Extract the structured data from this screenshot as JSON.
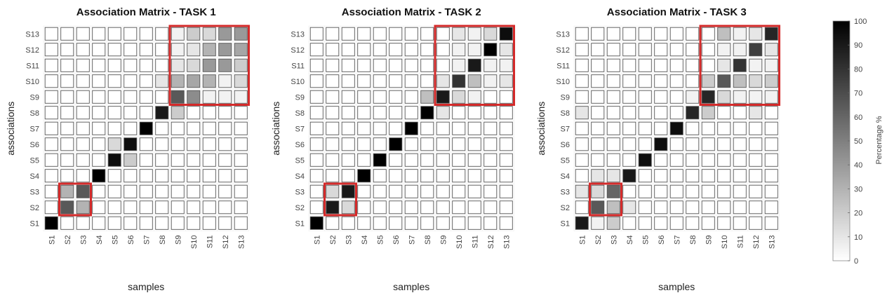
{
  "chart_data": [
    {
      "type": "heatmap",
      "title": "Association Matrix - TASK 1",
      "xlabel": "samples",
      "ylabel": "associations",
      "x_categories": [
        "S1",
        "S2",
        "S3",
        "S4",
        "S5",
        "S6",
        "S7",
        "S8",
        "S9",
        "S10",
        "S11",
        "S12",
        "S13"
      ],
      "y_categories": [
        "S1",
        "S2",
        "S3",
        "S4",
        "S5",
        "S6",
        "S7",
        "S8",
        "S9",
        "S10",
        "S11",
        "S12",
        "S13"
      ],
      "values_top_to_bottom": [
        [
          0,
          0,
          0,
          0,
          0,
          0,
          0,
          0,
          5,
          20,
          15,
          40,
          40
        ],
        [
          0,
          0,
          0,
          0,
          0,
          0,
          0,
          0,
          5,
          10,
          30,
          40,
          35
        ],
        [
          0,
          0,
          0,
          0,
          0,
          0,
          0,
          0,
          10,
          15,
          40,
          40,
          20
        ],
        [
          0,
          0,
          0,
          0,
          0,
          0,
          0,
          10,
          30,
          35,
          30,
          5,
          15
        ],
        [
          0,
          0,
          0,
          0,
          0,
          0,
          0,
          0,
          65,
          45,
          5,
          5,
          5
        ],
        [
          0,
          0,
          0,
          0,
          0,
          0,
          0,
          90,
          20,
          0,
          0,
          0,
          0
        ],
        [
          0,
          0,
          0,
          0,
          0,
          0,
          100,
          0,
          0,
          0,
          0,
          0,
          0
        ],
        [
          0,
          0,
          0,
          0,
          15,
          95,
          0,
          0,
          0,
          0,
          0,
          0,
          0
        ],
        [
          0,
          0,
          0,
          0,
          95,
          20,
          0,
          0,
          0,
          0,
          0,
          0,
          0
        ],
        [
          0,
          0,
          0,
          100,
          0,
          0,
          0,
          0,
          0,
          0,
          0,
          0,
          0
        ],
        [
          0,
          30,
          65,
          0,
          0,
          0,
          0,
          0,
          0,
          0,
          0,
          0,
          0
        ],
        [
          0,
          65,
          30,
          0,
          0,
          0,
          0,
          0,
          0,
          0,
          0,
          0,
          0
        ],
        [
          100,
          0,
          0,
          0,
          0,
          0,
          0,
          0,
          0,
          0,
          0,
          0,
          0
        ]
      ],
      "highlight_boxes": [
        {
          "x_range": [
            "S9",
            "S13"
          ],
          "y_range": [
            "S9",
            "S13"
          ],
          "color": "#d42a2a"
        },
        {
          "x_range": [
            "S2",
            "S3"
          ],
          "y_range": [
            "S2",
            "S3"
          ],
          "color": "#d42a2a"
        }
      ]
    },
    {
      "type": "heatmap",
      "title": "Association Matrix - TASK 2",
      "xlabel": "samples",
      "ylabel": "associations",
      "x_categories": [
        "S1",
        "S2",
        "S3",
        "S4",
        "S5",
        "S6",
        "S7",
        "S8",
        "S9",
        "S10",
        "S11",
        "S12",
        "S13"
      ],
      "y_categories": [
        "S1",
        "S2",
        "S3",
        "S4",
        "S5",
        "S6",
        "S7",
        "S8",
        "S9",
        "S10",
        "S11",
        "S12",
        "S13"
      ],
      "values_top_to_bottom": [
        [
          0,
          0,
          0,
          0,
          0,
          0,
          0,
          0,
          0,
          10,
          5,
          15,
          95
        ],
        [
          0,
          0,
          0,
          0,
          0,
          0,
          0,
          0,
          0,
          5,
          5,
          100,
          10
        ],
        [
          0,
          0,
          0,
          0,
          0,
          0,
          0,
          0,
          0,
          5,
          90,
          5,
          5
        ],
        [
          0,
          0,
          0,
          0,
          0,
          0,
          0,
          0,
          10,
          80,
          25,
          5,
          10
        ],
        [
          0,
          0,
          0,
          0,
          0,
          0,
          0,
          25,
          90,
          15,
          5,
          0,
          0
        ],
        [
          0,
          0,
          0,
          0,
          0,
          0,
          0,
          100,
          10,
          0,
          0,
          0,
          0
        ],
        [
          0,
          0,
          0,
          0,
          0,
          0,
          100,
          0,
          0,
          0,
          0,
          0,
          0
        ],
        [
          0,
          0,
          0,
          0,
          0,
          100,
          0,
          0,
          0,
          0,
          0,
          0,
          0
        ],
        [
          0,
          0,
          0,
          0,
          100,
          0,
          0,
          0,
          0,
          0,
          0,
          0,
          0
        ],
        [
          0,
          0,
          0,
          100,
          0,
          0,
          0,
          0,
          0,
          0,
          0,
          0,
          0
        ],
        [
          0,
          15,
          90,
          0,
          0,
          0,
          0,
          0,
          0,
          0,
          0,
          0,
          0
        ],
        [
          0,
          90,
          15,
          0,
          0,
          0,
          0,
          0,
          0,
          0,
          0,
          0,
          0
        ],
        [
          100,
          0,
          0,
          0,
          0,
          0,
          0,
          0,
          0,
          0,
          0,
          0,
          0
        ]
      ],
      "highlight_boxes": [
        {
          "x_range": [
            "S9",
            "S13"
          ],
          "y_range": [
            "S9",
            "S13"
          ],
          "color": "#d42a2a"
        },
        {
          "x_range": [
            "S2",
            "S3"
          ],
          "y_range": [
            "S2",
            "S3"
          ],
          "color": "#d42a2a"
        }
      ]
    },
    {
      "type": "heatmap",
      "title": "Association Matrix - TASK 3",
      "xlabel": "samples",
      "ylabel": "associations",
      "x_categories": [
        "S1",
        "S2",
        "S3",
        "S4",
        "S5",
        "S6",
        "S7",
        "S8",
        "S9",
        "S10",
        "S11",
        "S12",
        "S13"
      ],
      "y_categories": [
        "S1",
        "S2",
        "S3",
        "S4",
        "S5",
        "S6",
        "S7",
        "S8",
        "S9",
        "S10",
        "S11",
        "S12",
        "S13"
      ],
      "values_top_to_bottom": [
        [
          0,
          0,
          0,
          0,
          0,
          0,
          0,
          0,
          0,
          25,
          5,
          10,
          85
        ],
        [
          0,
          0,
          0,
          0,
          0,
          0,
          0,
          0,
          0,
          5,
          5,
          75,
          10
        ],
        [
          0,
          0,
          0,
          0,
          0,
          0,
          0,
          0,
          0,
          10,
          80,
          5,
          5
        ],
        [
          0,
          0,
          0,
          0,
          0,
          0,
          0,
          0,
          20,
          65,
          25,
          15,
          20
        ],
        [
          0,
          0,
          0,
          0,
          0,
          0,
          0,
          5,
          85,
          15,
          5,
          5,
          5
        ],
        [
          10,
          0,
          0,
          0,
          0,
          0,
          0,
          85,
          20,
          0,
          0,
          10,
          0
        ],
        [
          0,
          0,
          0,
          0,
          0,
          0,
          95,
          0,
          0,
          0,
          0,
          0,
          0
        ],
        [
          0,
          0,
          0,
          0,
          0,
          95,
          0,
          0,
          0,
          0,
          0,
          0,
          0
        ],
        [
          0,
          0,
          0,
          0,
          95,
          0,
          0,
          0,
          0,
          0,
          0,
          0,
          0
        ],
        [
          0,
          10,
          10,
          90,
          0,
          0,
          0,
          0,
          0,
          0,
          0,
          0,
          0
        ],
        [
          10,
          15,
          60,
          0,
          0,
          0,
          0,
          0,
          0,
          0,
          0,
          0,
          0
        ],
        [
          0,
          65,
          25,
          10,
          0,
          0,
          0,
          0,
          0,
          0,
          0,
          0,
          0
        ],
        [
          90,
          5,
          20,
          0,
          0,
          0,
          0,
          0,
          0,
          0,
          0,
          0,
          0
        ]
      ],
      "highlight_boxes": [
        {
          "x_range": [
            "S9",
            "S13"
          ],
          "y_range": [
            "S9",
            "S13"
          ],
          "color": "#d42a2a"
        },
        {
          "x_range": [
            "S2",
            "S3"
          ],
          "y_range": [
            "S2",
            "S3"
          ],
          "color": "#d42a2a"
        }
      ]
    }
  ],
  "colorbar": {
    "label": "Percentage %",
    "ticks": [
      100,
      90,
      80,
      70,
      60,
      50,
      40,
      30,
      20,
      10,
      0
    ],
    "range": [
      0,
      100
    ],
    "colors": {
      "low": "#ffffff",
      "high": "#000000"
    }
  }
}
